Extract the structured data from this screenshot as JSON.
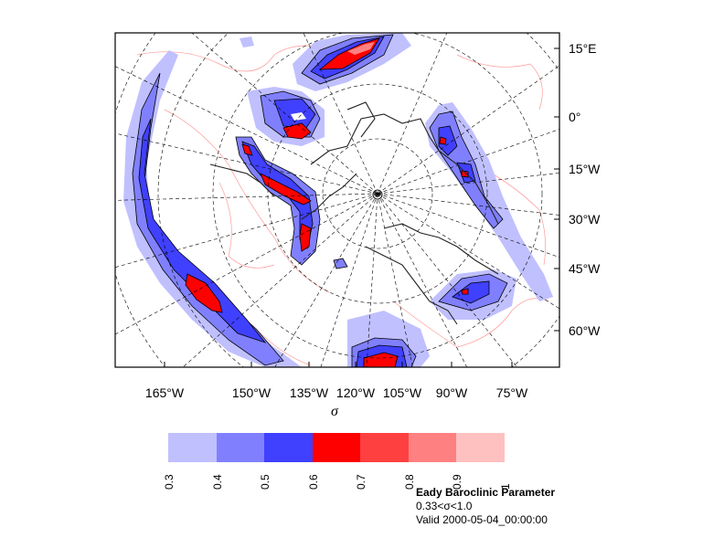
{
  "title": "Eady Baroclinic Parameter",
  "subtitle": "0.33<σ<1.0",
  "valid_time": "Valid 2000-05-04_00:00:00",
  "x_axis_symbol": "σ",
  "right_labels": [
    "15°E",
    "0°",
    "15°W",
    "30°W",
    "45°W",
    "60°W"
  ],
  "bottom_labels": [
    "165°W",
    "150°W",
    "135°W",
    "120°W",
    "105°W",
    "90°W",
    "75°W"
  ],
  "colorbar": {
    "ticks": [
      "0.3",
      "0.4",
      "0.5",
      "0.6",
      "0.7",
      "0.8",
      "0.9",
      "1"
    ],
    "colors": [
      "#c0c0ff",
      "#8080ff",
      "#4040ff",
      "#ff0000",
      "#ff4040",
      "#ff8080",
      "#ffc0c0"
    ]
  }
}
